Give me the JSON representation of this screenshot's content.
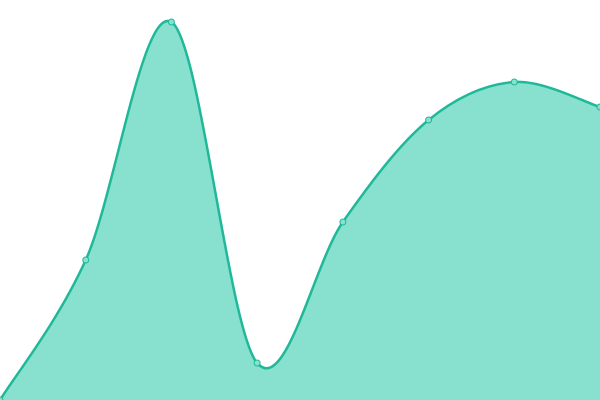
{
  "chart_data": {
    "type": "area",
    "values": [
      0,
      140,
      378,
      37,
      178,
      280,
      318,
      293
    ],
    "ylim": [
      0,
      400
    ],
    "color": "#1fb899",
    "fill": "#88e0cf"
  }
}
